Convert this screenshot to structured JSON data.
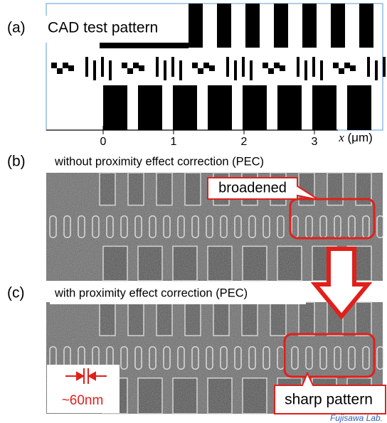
{
  "panels": [
    {
      "label": "(a)",
      "title": "CAD test pattern"
    },
    {
      "label": "(b)",
      "title": "without proximity effect correction (PEC)",
      "callout": "broadened"
    },
    {
      "label": "(c)",
      "title": "with proximity effect correction (PEC)",
      "callout": "sharp pattern",
      "scale_label": "~60nm"
    }
  ],
  "axis": {
    "ticks": [
      0,
      1,
      2,
      3
    ],
    "variable": "x",
    "unit": "(μm)"
  },
  "credit": "Fujisawa Lab."
}
